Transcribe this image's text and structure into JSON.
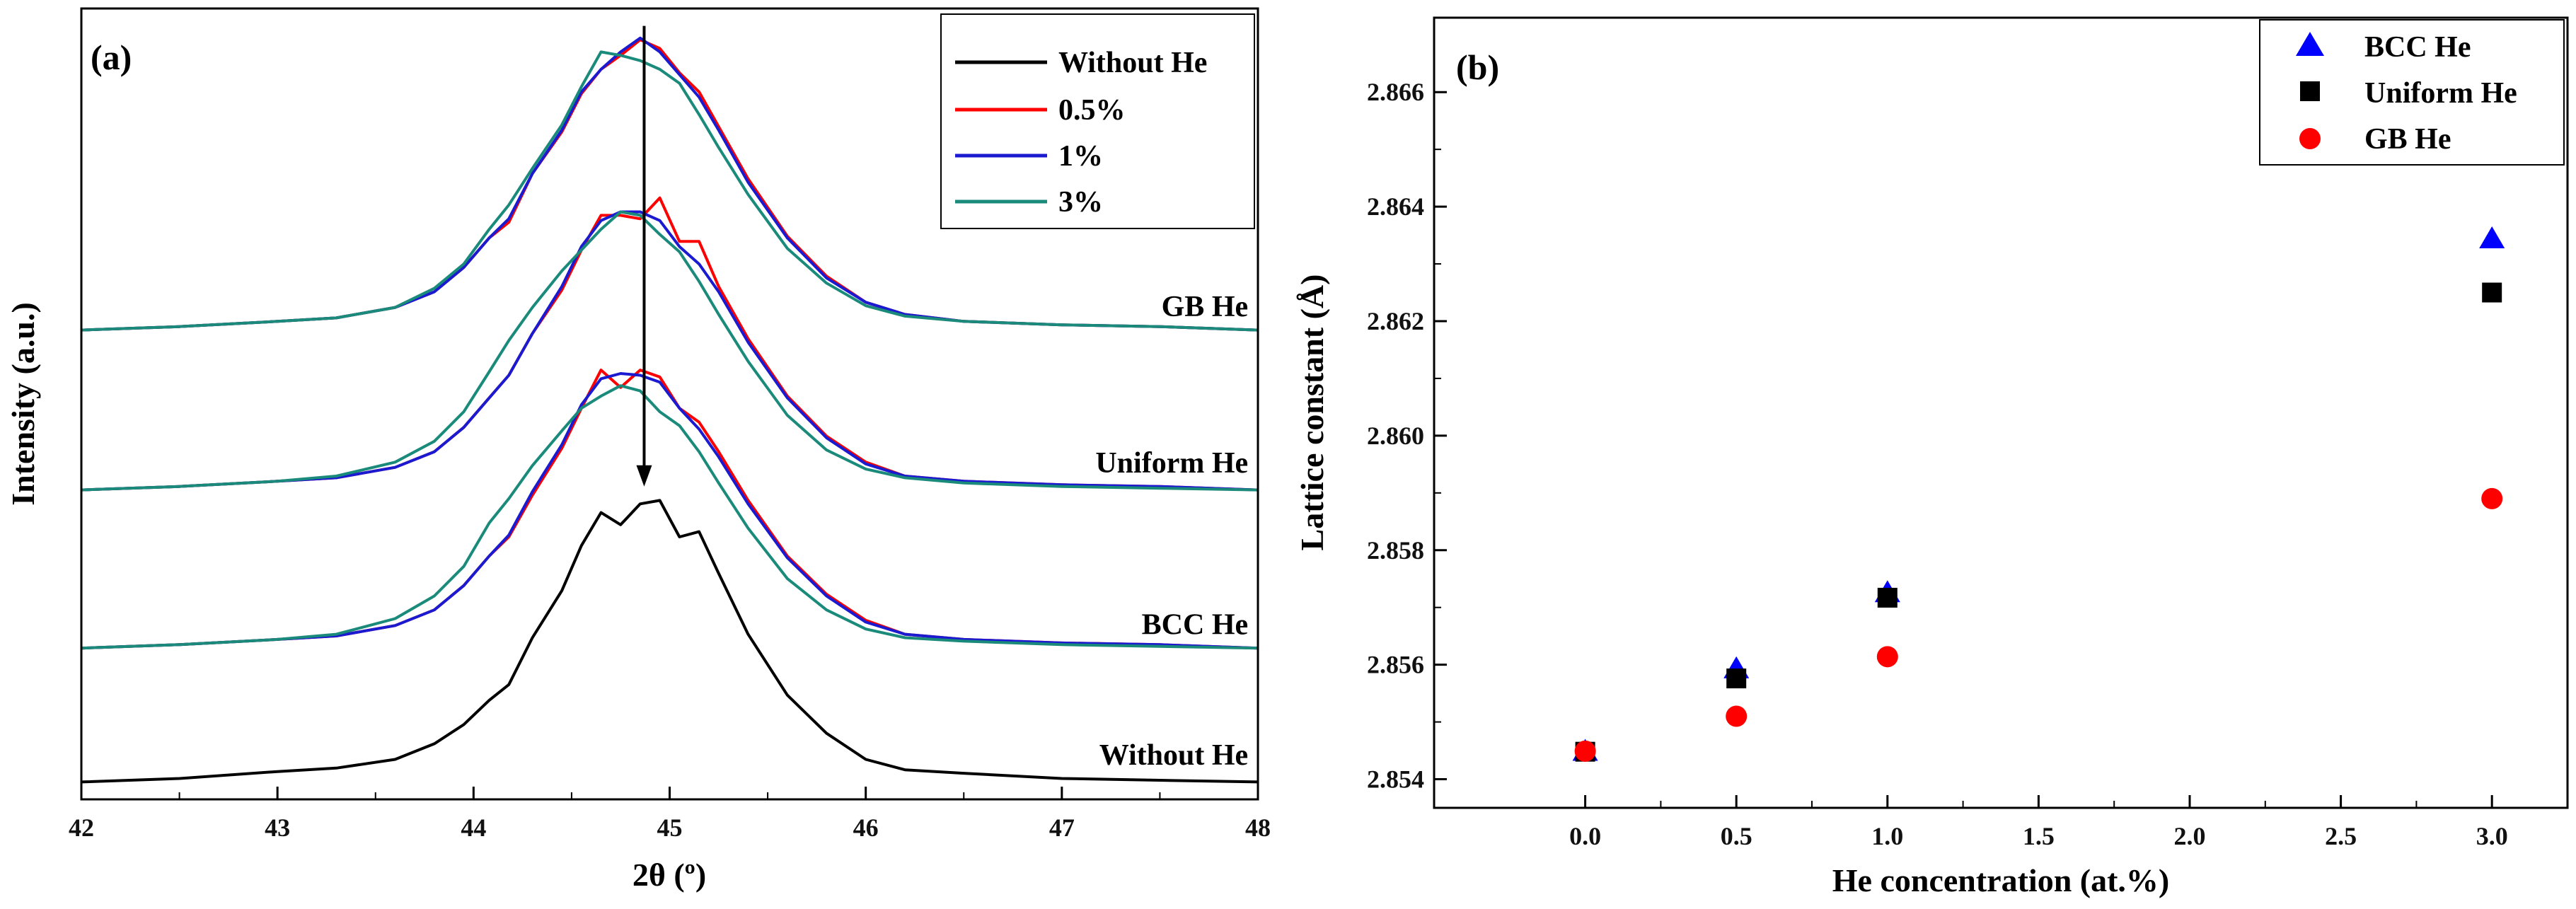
{
  "chart_data": [
    {
      "type": "line",
      "panel_label": "(a)",
      "xlabel": "2θ (º)",
      "ylabel": "Intensity (a.u.)",
      "xlim": [
        42,
        48
      ],
      "ylim": [
        -0.1,
        4.45
      ],
      "xticks": [
        "42",
        "43",
        "44",
        "45",
        "46",
        "47",
        "48"
      ],
      "yticks_hidden": true,
      "legend_position": "top-right",
      "legend": [
        "Without He",
        "0.5%",
        "1%",
        "3%"
      ],
      "group_labels": [
        {
          "text": "GB He",
          "x": 47.95,
          "y": 2.68
        },
        {
          "text": "Uniform He",
          "x": 47.95,
          "y": 1.78
        },
        {
          "text": "BCC He",
          "x": 47.95,
          "y": 0.85
        },
        {
          "text": "Without He",
          "x": 47.95,
          "y": 0.1
        }
      ],
      "annotations": [
        {
          "type": "arrow",
          "x": 44.87,
          "from_y": 4.35,
          "to_y": 1.7
        }
      ],
      "colors": {
        "without": "#000000",
        "p05": "#ff0000",
        "p1": "#1a1ad0",
        "p3": "#1a8a7a"
      },
      "offsets": {
        "without": 0.0,
        "bcc": 0.77,
        "uniform": 1.68,
        "gb": 2.6
      },
      "series": [
        {
          "name": "Without He",
          "group": "Without He",
          "color": "#000000",
          "x": [
            42.0,
            42.5,
            43.0,
            43.3,
            43.6,
            43.8,
            43.95,
            44.08,
            44.18,
            44.3,
            44.45,
            44.55,
            44.65,
            44.75,
            44.85,
            44.95,
            45.05,
            45.15,
            45.25,
            45.4,
            45.6,
            45.8,
            46.0,
            46.2,
            46.5,
            47.0,
            47.5,
            48.0
          ],
          "y": [
            0.0,
            0.02,
            0.06,
            0.08,
            0.13,
            0.22,
            0.33,
            0.47,
            0.56,
            0.83,
            1.1,
            1.36,
            1.55,
            1.48,
            1.6,
            1.62,
            1.41,
            1.44,
            1.2,
            0.85,
            0.5,
            0.28,
            0.13,
            0.07,
            0.05,
            0.02,
            0.01,
            0.0
          ]
        },
        {
          "name": "0.5%",
          "group": "BCC He",
          "color": "#ff0000",
          "x": [
            42.0,
            42.5,
            43.0,
            43.3,
            43.6,
            43.8,
            43.95,
            44.08,
            44.18,
            44.3,
            44.45,
            44.55,
            44.65,
            44.75,
            44.85,
            44.95,
            45.05,
            45.15,
            45.25,
            45.4,
            45.6,
            45.8,
            46.0,
            46.2,
            46.5,
            47.0,
            47.5,
            48.0
          ],
          "y": [
            0.0,
            0.02,
            0.05,
            0.07,
            0.13,
            0.22,
            0.36,
            0.53,
            0.64,
            0.88,
            1.15,
            1.38,
            1.6,
            1.5,
            1.6,
            1.56,
            1.38,
            1.3,
            1.13,
            0.85,
            0.53,
            0.31,
            0.16,
            0.08,
            0.05,
            0.03,
            0.02,
            0.0
          ]
        },
        {
          "name": "1%",
          "group": "BCC He",
          "color": "#1a1ad0",
          "x": [
            42.0,
            42.5,
            43.0,
            43.3,
            43.6,
            43.8,
            43.95,
            44.08,
            44.18,
            44.3,
            44.45,
            44.55,
            44.65,
            44.75,
            44.85,
            44.95,
            45.05,
            45.15,
            45.25,
            45.4,
            45.6,
            45.8,
            46.0,
            46.2,
            46.5,
            47.0,
            47.5,
            48.0
          ],
          "y": [
            0.0,
            0.02,
            0.05,
            0.07,
            0.13,
            0.22,
            0.36,
            0.53,
            0.65,
            0.9,
            1.17,
            1.4,
            1.55,
            1.58,
            1.57,
            1.53,
            1.38,
            1.26,
            1.1,
            0.83,
            0.52,
            0.3,
            0.15,
            0.08,
            0.05,
            0.03,
            0.02,
            0.0
          ]
        },
        {
          "name": "3%",
          "group": "BCC He",
          "color": "#1a8a7a",
          "x": [
            42.0,
            42.5,
            43.0,
            43.3,
            43.6,
            43.8,
            43.95,
            44.08,
            44.18,
            44.3,
            44.45,
            44.55,
            44.65,
            44.75,
            44.85,
            44.95,
            45.05,
            45.15,
            45.25,
            45.4,
            45.6,
            45.8,
            46.0,
            46.2,
            46.5,
            47.0,
            47.5,
            48.0
          ],
          "y": [
            0.0,
            0.02,
            0.05,
            0.08,
            0.17,
            0.3,
            0.47,
            0.72,
            0.86,
            1.05,
            1.25,
            1.38,
            1.45,
            1.51,
            1.48,
            1.36,
            1.28,
            1.13,
            0.95,
            0.69,
            0.4,
            0.22,
            0.11,
            0.06,
            0.04,
            0.02,
            0.01,
            0.0
          ]
        },
        {
          "name": "0.5%",
          "group": "Uniform He",
          "color": "#ff0000",
          "x": [
            42.0,
            42.5,
            43.0,
            43.3,
            43.6,
            43.8,
            43.95,
            44.08,
            44.18,
            44.3,
            44.45,
            44.55,
            44.65,
            44.75,
            44.85,
            44.95,
            45.05,
            45.15,
            45.25,
            45.4,
            45.6,
            45.8,
            46.0,
            46.2,
            46.5,
            47.0,
            47.5,
            48.0
          ],
          "y": [
            0.0,
            0.02,
            0.05,
            0.07,
            0.13,
            0.22,
            0.36,
            0.53,
            0.66,
            0.9,
            1.15,
            1.38,
            1.58,
            1.58,
            1.56,
            1.68,
            1.43,
            1.43,
            1.17,
            0.87,
            0.54,
            0.31,
            0.16,
            0.08,
            0.05,
            0.03,
            0.02,
            0.0
          ]
        },
        {
          "name": "1%",
          "group": "Uniform He",
          "color": "#1a1ad0",
          "x": [
            42.0,
            42.5,
            43.0,
            43.3,
            43.6,
            43.8,
            43.95,
            44.08,
            44.18,
            44.3,
            44.45,
            44.55,
            44.65,
            44.75,
            44.85,
            44.95,
            45.05,
            45.15,
            45.25,
            45.4,
            45.6,
            45.8,
            46.0,
            46.2,
            46.5,
            47.0,
            47.5,
            48.0
          ],
          "y": [
            0.0,
            0.02,
            0.05,
            0.07,
            0.13,
            0.22,
            0.36,
            0.53,
            0.66,
            0.9,
            1.17,
            1.4,
            1.55,
            1.6,
            1.6,
            1.55,
            1.4,
            1.3,
            1.14,
            0.85,
            0.53,
            0.3,
            0.15,
            0.08,
            0.05,
            0.03,
            0.02,
            0.0
          ]
        },
        {
          "name": "3%",
          "group": "Uniform He",
          "color": "#1a8a7a",
          "x": [
            42.0,
            42.5,
            43.0,
            43.3,
            43.6,
            43.8,
            43.95,
            44.08,
            44.18,
            44.3,
            44.45,
            44.55,
            44.65,
            44.75,
            44.85,
            44.95,
            45.05,
            45.15,
            45.25,
            45.4,
            45.6,
            45.8,
            46.0,
            46.2,
            46.5,
            47.0,
            47.5,
            48.0
          ],
          "y": [
            0.0,
            0.02,
            0.05,
            0.08,
            0.16,
            0.28,
            0.45,
            0.68,
            0.86,
            1.05,
            1.26,
            1.38,
            1.5,
            1.6,
            1.58,
            1.47,
            1.37,
            1.2,
            1.01,
            0.74,
            0.43,
            0.23,
            0.12,
            0.07,
            0.04,
            0.02,
            0.01,
            0.0
          ]
        },
        {
          "name": "0.5%",
          "group": "GB He",
          "color": "#ff0000",
          "x": [
            42.0,
            42.5,
            43.0,
            43.3,
            43.6,
            43.8,
            43.95,
            44.08,
            44.18,
            44.3,
            44.45,
            44.55,
            44.65,
            44.75,
            44.85,
            44.95,
            45.05,
            45.15,
            45.25,
            45.4,
            45.6,
            45.8,
            46.0,
            46.2,
            46.5,
            47.0,
            47.5,
            48.0
          ],
          "y": [
            0.0,
            0.02,
            0.05,
            0.07,
            0.13,
            0.22,
            0.36,
            0.53,
            0.62,
            0.9,
            1.14,
            1.36,
            1.5,
            1.58,
            1.67,
            1.62,
            1.48,
            1.37,
            1.17,
            0.87,
            0.54,
            0.31,
            0.16,
            0.09,
            0.05,
            0.03,
            0.02,
            0.0
          ]
        },
        {
          "name": "1%",
          "group": "GB He",
          "color": "#1a1ad0",
          "x": [
            42.0,
            42.5,
            43.0,
            43.3,
            43.6,
            43.8,
            43.95,
            44.08,
            44.18,
            44.3,
            44.45,
            44.55,
            44.65,
            44.75,
            44.85,
            44.95,
            45.05,
            45.15,
            45.25,
            45.4,
            45.6,
            45.8,
            46.0,
            46.2,
            46.5,
            47.0,
            47.5,
            48.0
          ],
          "y": [
            0.0,
            0.02,
            0.05,
            0.07,
            0.13,
            0.22,
            0.36,
            0.53,
            0.64,
            0.9,
            1.15,
            1.37,
            1.5,
            1.6,
            1.68,
            1.6,
            1.47,
            1.34,
            1.15,
            0.85,
            0.53,
            0.3,
            0.16,
            0.09,
            0.05,
            0.03,
            0.02,
            0.0
          ]
        },
        {
          "name": "3%",
          "group": "GB He",
          "color": "#1a8a7a",
          "x": [
            42.0,
            42.5,
            43.0,
            43.3,
            43.6,
            43.8,
            43.95,
            44.08,
            44.18,
            44.3,
            44.45,
            44.55,
            44.65,
            44.75,
            44.85,
            44.95,
            45.05,
            45.15,
            45.25,
            45.4,
            45.6,
            45.8,
            46.0,
            46.2,
            46.5,
            47.0,
            47.5,
            48.0
          ],
          "y": [
            0.0,
            0.02,
            0.05,
            0.07,
            0.13,
            0.24,
            0.38,
            0.58,
            0.72,
            0.93,
            1.18,
            1.4,
            1.6,
            1.58,
            1.55,
            1.5,
            1.42,
            1.24,
            1.05,
            0.78,
            0.47,
            0.27,
            0.14,
            0.08,
            0.05,
            0.03,
            0.02,
            0.0
          ]
        }
      ]
    },
    {
      "type": "scatter",
      "panel_label": "(b)",
      "xlabel": "He concentration (at.%)",
      "ylabel": "Lattice constant (Å)",
      "xlim": [
        -0.5,
        3.25
      ],
      "ylim": [
        2.8535,
        2.8673
      ],
      "xticks": [
        "0.0",
        "0.5",
        "1.0",
        "1.5",
        "2.0",
        "2.5",
        "3.0"
      ],
      "yticks": [
        "2.854",
        "2.856",
        "2.858",
        "2.860",
        "2.862",
        "2.864",
        "2.866"
      ],
      "legend_position": "top-right",
      "series": [
        {
          "name": "BCC He",
          "marker": "triangle",
          "color": "#0000ff",
          "x": [
            0.0,
            0.5,
            1.0,
            3.0
          ],
          "y": [
            2.85447,
            2.85591,
            2.85724,
            2.86342
          ]
        },
        {
          "name": "Uniform He",
          "marker": "square",
          "color": "#000000",
          "x": [
            0.0,
            0.5,
            1.0,
            3.0
          ],
          "y": [
            2.85448,
            2.85576,
            2.85717,
            2.8625
          ]
        },
        {
          "name": "GB He",
          "marker": "circle",
          "color": "#ff0000",
          "x": [
            0.0,
            0.5,
            1.0,
            3.0
          ],
          "y": [
            2.85449,
            2.8551,
            2.85614,
            2.8589
          ]
        }
      ]
    }
  ]
}
